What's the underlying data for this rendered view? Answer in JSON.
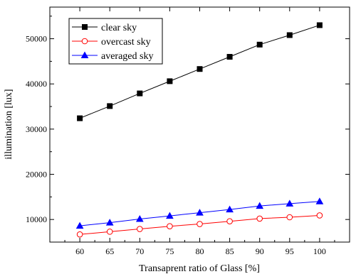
{
  "chart_data": {
    "type": "line",
    "title": "",
    "xlabel": "Transaprent ratio of Glass [%]",
    "ylabel": "illumination [lux]",
    "x": [
      60,
      65,
      70,
      75,
      80,
      85,
      90,
      95,
      100
    ],
    "xlim": [
      55,
      105
    ],
    "ylim": [
      5000,
      57000
    ],
    "xticks": [
      "60",
      "65",
      "70",
      "75",
      "80",
      "85",
      "90",
      "95",
      "100"
    ],
    "yticks": [
      "10000",
      "20000",
      "30000",
      "40000",
      "50000"
    ],
    "ytick_values": [
      10000,
      20000,
      30000,
      40000,
      50000
    ],
    "grid": false,
    "legend_position": "top-left",
    "series": [
      {
        "name": "clear sky",
        "marker": "filled-square",
        "color": "#000000",
        "values": [
          32400,
          35100,
          37900,
          40600,
          43300,
          46000,
          48700,
          50800,
          53000
        ]
      },
      {
        "name": "overcast sky",
        "marker": "open-circle",
        "color": "#ff0000",
        "values": [
          6700,
          7300,
          7900,
          8500,
          9000,
          9600,
          10200,
          10500,
          10900
        ]
      },
      {
        "name": "averaged sky",
        "marker": "filled-triangle",
        "color": "#0000ff",
        "values": [
          8600,
          9300,
          10100,
          10800,
          11500,
          12200,
          13000,
          13500,
          14000
        ]
      }
    ]
  }
}
